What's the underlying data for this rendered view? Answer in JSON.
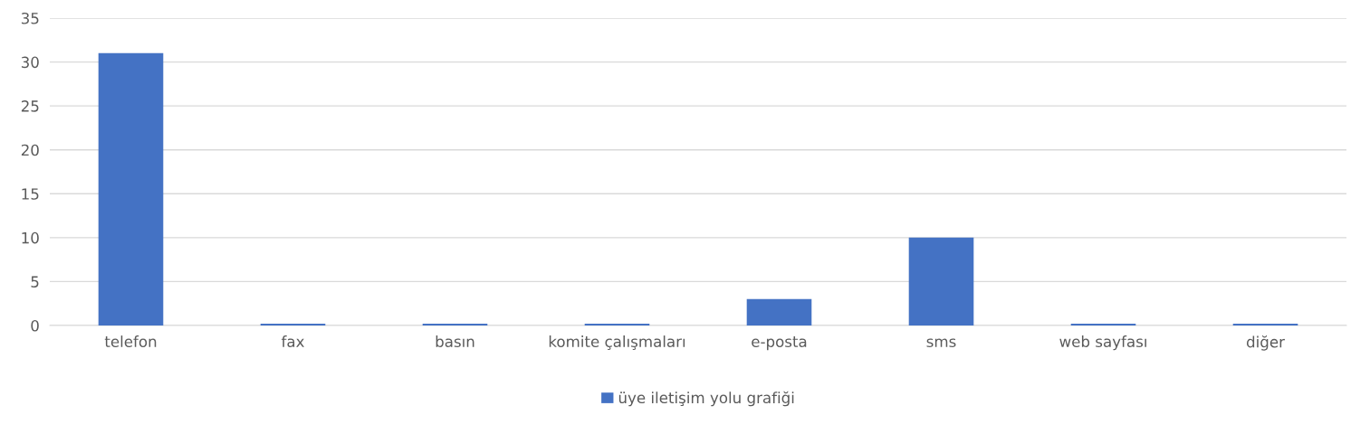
{
  "chart_data": {
    "type": "bar",
    "categories": [
      "telefon",
      "fax",
      "basın",
      "komite çalışmaları",
      "e-posta",
      "sms",
      "web sayfası",
      "diğer"
    ],
    "series": [
      {
        "name": "üye iletişim yolu grafiği",
        "color": "#4472c4",
        "values": [
          31,
          0.2,
          0.2,
          0.2,
          3,
          10,
          0.2,
          0.2
        ]
      }
    ],
    "ylim": [
      0,
      35
    ],
    "yticks": [
      0,
      5,
      10,
      15,
      20,
      25,
      30,
      35
    ],
    "grid": "y",
    "legend": "bottom"
  }
}
